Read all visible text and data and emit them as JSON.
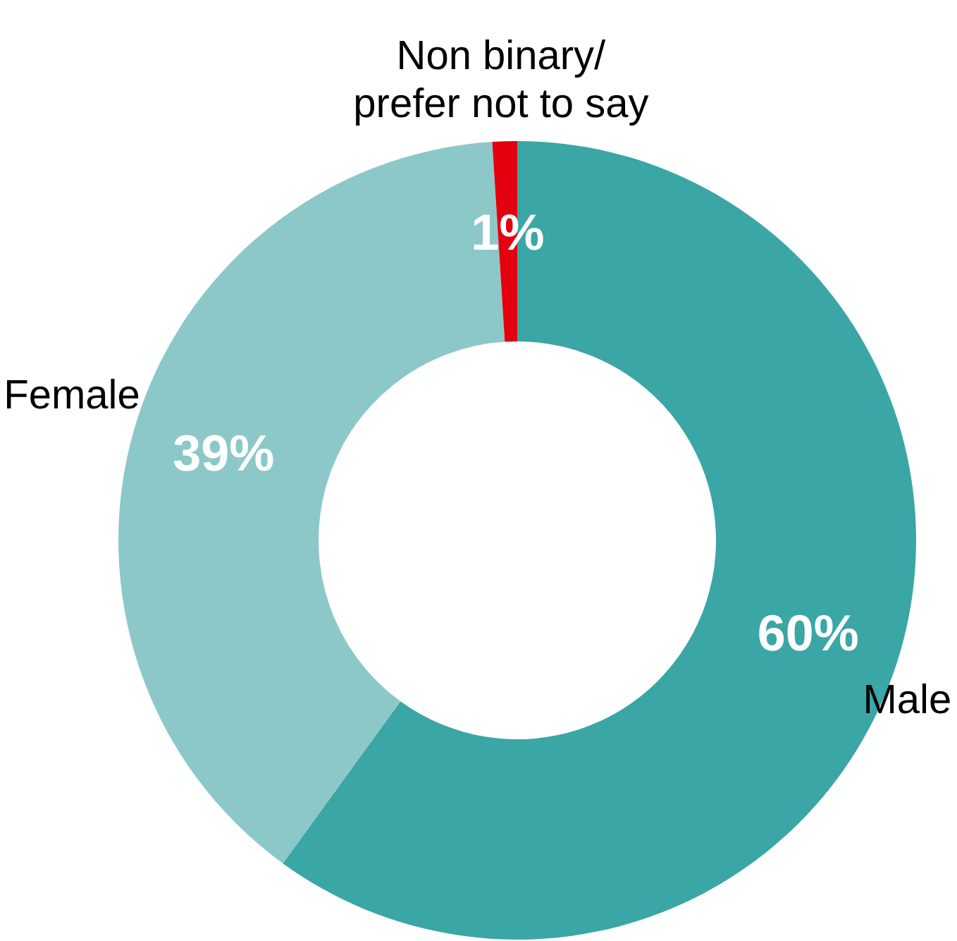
{
  "chart_data": {
    "type": "donut",
    "categories": [
      "Male",
      "Female",
      "Non binary/\nprefer not to say"
    ],
    "values": [
      60,
      39,
      1
    ],
    "colors": [
      "#3ba6a6",
      "#8dc8c8",
      "#e3000f"
    ],
    "value_labels": [
      "60%",
      "39%",
      "1%"
    ]
  }
}
